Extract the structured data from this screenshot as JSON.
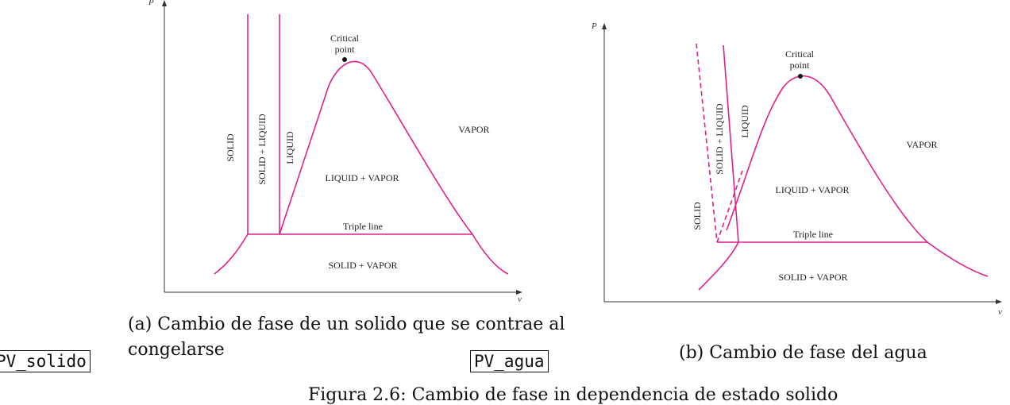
{
  "diagram_a": {
    "p_axis": "P",
    "v_axis": "v",
    "critical_point_line1": "Critical",
    "critical_point_line2": "point",
    "solid": "SOLID",
    "solid_liquid": "SOLID + LIQUID",
    "liquid": "LIQUID",
    "vapor": "VAPOR",
    "liquid_vapor": "LIQUID + VAPOR",
    "triple_line": "Triple line",
    "solid_vapor": "SOLID + VAPOR",
    "caption_line1": "(a) Cambio de fase de un solido que se contrae al",
    "caption_line2": "congelarse",
    "tag": "PV_solido"
  },
  "diagram_b": {
    "p_axis": "P",
    "v_axis": "v",
    "critical_point_line1": "Critical",
    "critical_point_line2": "point",
    "solid": "SOLID",
    "solid_liquid": "SOLID + LIQUID",
    "liquid": "LIQUID",
    "vapor": "VAPOR",
    "liquid_vapor": "LIQUID + VAPOR",
    "triple_line": "Triple line",
    "solid_vapor": "SOLID + VAPOR",
    "caption": "(b) Cambio de fase del agua",
    "tag": "PV_agua"
  },
  "figure_caption": "Figura 2.6: Cambio de fase in dependencia de estado solido"
}
